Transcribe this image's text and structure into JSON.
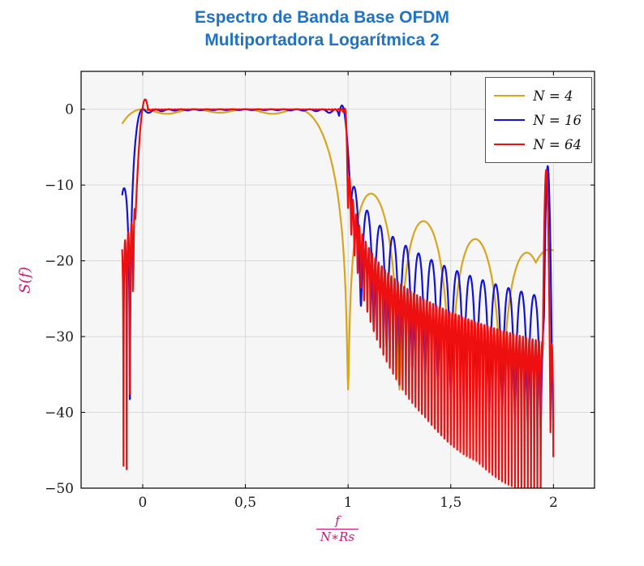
{
  "colors": {
    "title": "#1e73c9",
    "axis_label": "#cf1277",
    "plot_bg": "#f6f6f6",
    "grid": "#d9d9d9",
    "axis": "#000000",
    "tick_text": "#1a1a1a"
  },
  "chart_data": {
    "type": "line",
    "title": "Espectro de Banda Base OFDM",
    "subtitle": "Multiportadora Logarítmica 2",
    "ylabel": "S(f)",
    "xlabel_numerator": "f",
    "xlabel_denominator": "N∗Rs",
    "xlim": [
      -0.3,
      2.2
    ],
    "ylim": [
      -50,
      5
    ],
    "xticks": [
      0,
      0.5,
      1,
      1.5,
      2
    ],
    "xtick_labels": [
      "0",
      "0,5",
      "1",
      "1,5",
      "2"
    ],
    "yticks": [
      0,
      -10,
      -20,
      -30,
      -40,
      -50
    ],
    "ytick_labels": [
      "0",
      "−10",
      "−20",
      "−30",
      "−40",
      "−50"
    ],
    "grid": true,
    "legend_position": "top-right",
    "series": [
      {
        "name": "N = 4",
        "color": "#d8a51e",
        "model": {
          "type": "ofdm-sinc-sum",
          "N": 4,
          "x_start": -0.1,
          "x_end": 2.0,
          "step": 0.002,
          "floor": {
            "f0": 0.0002,
            "w0": 0.05,
            "p": 0,
            "base": 0
          },
          "bumps": [
            {
              "x": 1.98,
              "peak_db": -18.5,
              "w": 0.05
            }
          ]
        },
        "sampled_points": [
          [
            -0.1,
            -2.1
          ],
          [
            0,
            0
          ],
          [
            0.5,
            -0.2
          ],
          [
            0.8,
            -0.3
          ],
          [
            0.95,
            -9
          ],
          [
            1.0,
            -30
          ],
          [
            1.12,
            -12
          ],
          [
            1.25,
            -37
          ],
          [
            1.37,
            -17.5
          ],
          [
            1.5,
            -35
          ],
          [
            1.62,
            -21
          ],
          [
            1.75,
            -33
          ],
          [
            1.875,
            -19
          ],
          [
            2.0,
            -18.7
          ]
        ]
      },
      {
        "name": "N = 16",
        "color": "#1212dd",
        "model": {
          "type": "ofdm-sinc-sum",
          "N": 16,
          "x_start": -0.1,
          "x_end": 1.999,
          "step": 0.001,
          "floor": {
            "f0": 0.008,
            "w0": 0.08,
            "p": 2,
            "base": 1e-05
          },
          "bumps": [
            {
              "x": 0.97,
              "peak_db": 0.5,
              "w": 0.012
            },
            {
              "x": 1.972,
              "peak_db": -7.5,
              "w": 0.004
            }
          ]
        },
        "sampled_points": [
          [
            -0.1,
            -11.3
          ],
          [
            -0.05,
            -28
          ],
          [
            0,
            -0.2
          ],
          [
            0.5,
            -0.1
          ],
          [
            0.94,
            -0.4
          ],
          [
            1.0,
            -8
          ],
          [
            1.03,
            -11.5
          ],
          [
            1.06,
            -28
          ],
          [
            1.25,
            -20
          ],
          [
            1.5,
            -24
          ],
          [
            1.75,
            -26
          ],
          [
            1.9,
            -27
          ],
          [
            1.93,
            -45
          ],
          [
            1.972,
            -7.5
          ],
          [
            1.995,
            -50
          ]
        ]
      },
      {
        "name": "N = 64",
        "color": "#ee1010",
        "model": {
          "type": "ofdm-sinc-sum",
          "N": 64,
          "x_start": -0.1,
          "x_end": 1.999,
          "step": 0.0004,
          "floor": {
            "f0": 0.05,
            "w0": 0.05,
            "p": 3,
            "base": 1e-07
          },
          "bumps": [
            {
              "x": 0.012,
              "peak_db": 1.3,
              "w": 0.012
            },
            {
              "x": 1.965,
              "peak_db": -8,
              "w": 0.0035
            }
          ]
        },
        "sampled_points": [
          [
            -0.1,
            -18.5
          ],
          [
            -0.08,
            -33
          ],
          [
            -0.055,
            -13.5
          ],
          [
            0.01,
            1
          ],
          [
            0.5,
            -0.1
          ],
          [
            0.98,
            -0.5
          ],
          [
            1.02,
            -17
          ],
          [
            1.05,
            -10
          ],
          [
            1.2,
            -24
          ],
          [
            1.4,
            -43
          ],
          [
            1.5,
            -26
          ],
          [
            1.75,
            -30
          ],
          [
            1.9,
            -28
          ],
          [
            1.965,
            -8
          ],
          [
            1.995,
            -50
          ]
        ]
      }
    ]
  }
}
